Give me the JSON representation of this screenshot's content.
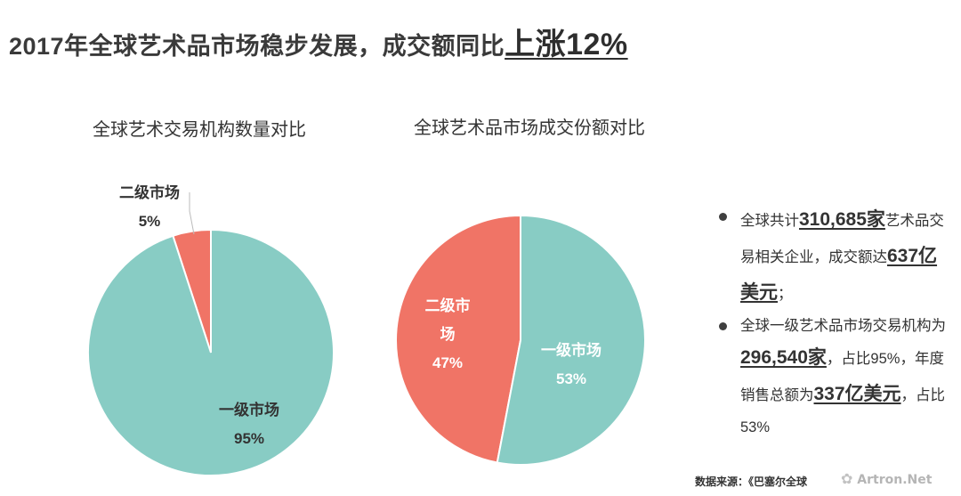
{
  "header": {
    "title_prefix": "2017年全球艺术品市场稳步发展，成交额同比",
    "title_highlight": "上涨12%"
  },
  "chart_data": [
    {
      "type": "pie",
      "title": "全球艺术交易机构数量对比",
      "categories": [
        "一级市场",
        "二级市场"
      ],
      "values": [
        95,
        5
      ],
      "labels": [
        "95%",
        "5%"
      ],
      "colors": [
        "#88ccc4",
        "#f07466"
      ]
    },
    {
      "type": "pie",
      "title": "全球艺术品市场成交份额对比",
      "categories": [
        "一级市场",
        "二级市场"
      ],
      "values": [
        53,
        47
      ],
      "labels": [
        "53%",
        "47%"
      ],
      "colors": [
        "#88ccc4",
        "#f07466"
      ]
    }
  ],
  "chart_labels": {
    "pie1_secondary_name": "二级市场",
    "pie1_primary_name": "一级市场",
    "pie2_secondary_name_line1": "二级市",
    "pie2_secondary_name_line2": "场",
    "pie2_primary_name": "一级市场"
  },
  "bullets": [
    {
      "t1": "全球共计",
      "n1": "310,685家",
      "t2": "艺术品交易相关企业，成交额达",
      "n2": "637亿美元",
      "t3": "；"
    },
    {
      "t1": "全球一级艺术品市场交易机构为",
      "n1": "296,540家",
      "t2": "，占比95%，年度销售总额为",
      "n2": "337亿美元",
      "t3": "，占比53%"
    }
  ],
  "footer": {
    "source": "数据来源：《巴塞尔全球",
    "watermark": "Artron.Net",
    "watermark_icon": "artron-logo-icon"
  }
}
